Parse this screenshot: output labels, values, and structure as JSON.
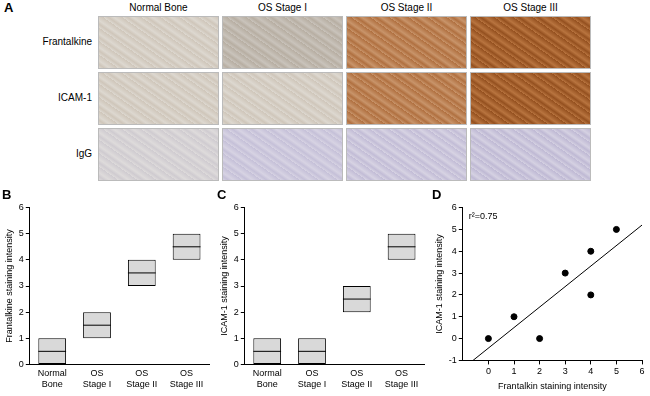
{
  "figure_a": {
    "label": "A",
    "columns": [
      "Normal Bone",
      "OS Stage I",
      "OS Stage II",
      "OS Stage III"
    ],
    "rows": [
      "Frantalkine",
      "ICAM-1",
      "IgG"
    ]
  },
  "chart_data": [
    {
      "type": "box",
      "title": "B",
      "categories": [
        "Normal Bone",
        "OS Stage I",
        "OS Stage II",
        "OS Stage III"
      ],
      "values": [
        0.5,
        1.5,
        3.5,
        4.5
      ],
      "lows": [
        0,
        1,
        3,
        4
      ],
      "highs": [
        1,
        2,
        4,
        5
      ],
      "color": "#d9d9d9",
      "y_label": "Frantalkine staining intensity",
      "ylim": [
        0,
        6
      ],
      "yticks": [
        0,
        1,
        2,
        3,
        4,
        5,
        6
      ],
      "grid": false
    },
    {
      "type": "box",
      "title": "C",
      "categories": [
        "Normal Bone",
        "OS Stage I",
        "OS Stage II",
        "OS Stage III"
      ],
      "values": [
        0.5,
        0.5,
        2.5,
        4.5
      ],
      "lows": [
        0,
        0,
        2,
        4
      ],
      "highs": [
        1,
        1,
        3,
        5
      ],
      "color": "#d9d9d9",
      "y_label": "ICAM-1 staining intensity",
      "ylim": [
        0,
        6
      ],
      "yticks": [
        0,
        1,
        2,
        3,
        4,
        5,
        6
      ],
      "grid": false
    },
    {
      "type": "scatter",
      "title": "D",
      "x_label": "Frantalkin staining intensity",
      "y_label": "ICAM-1 staining intensity",
      "annotations": [
        "r²=0.75"
      ],
      "xlim": [
        -1,
        6
      ],
      "xticks": [
        0,
        1,
        2,
        3,
        4,
        5,
        6
      ],
      "ylim": [
        -1,
        6
      ],
      "yticks": [
        -1,
        0,
        1,
        2,
        3,
        4,
        5,
        6
      ],
      "grid": false,
      "series": [
        {
          "type": "scatter",
          "color": "#000000",
          "marker": "circle",
          "x": [
            0,
            1,
            2,
            3,
            4,
            4,
            5
          ],
          "values": [
            0,
            1,
            0,
            3,
            4,
            2,
            5
          ]
        },
        {
          "type": "line",
          "color": "#000000",
          "line_style": "solid",
          "x": [
            -0.6,
            6
          ],
          "values": [
            -1,
            5.2
          ]
        }
      ]
    }
  ]
}
